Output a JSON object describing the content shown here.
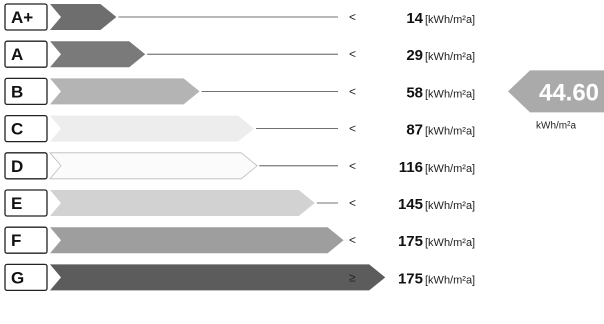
{
  "chart_data": {
    "type": "bar",
    "categories": [
      "A+",
      "A",
      "B",
      "C",
      "D",
      "E",
      "F",
      "G"
    ],
    "thresholds": [
      {
        "class": "A+",
        "symbol": "<",
        "value": "14",
        "unit": "[kWh/m²a]",
        "color": "#6e6e6e",
        "level": 0.12
      },
      {
        "class": "A",
        "symbol": "<",
        "value": "29",
        "unit": "[kWh/m²a]",
        "color": "#7a7a7a",
        "level": 0.21
      },
      {
        "class": "B",
        "symbol": "<",
        "value": "58",
        "unit": "[kWh/m²a]",
        "color": "#b4b4b4",
        "level": 0.38
      },
      {
        "class": "C",
        "symbol": "<",
        "value": "87",
        "unit": "[kWh/m²a]",
        "color": "#ededed",
        "level": 0.55
      },
      {
        "class": "D",
        "symbol": "<",
        "value": "116",
        "unit": "[kWh/m²a]",
        "color": "#fbfbfb",
        "level": 0.56
      },
      {
        "class": "E",
        "symbol": "<",
        "value": "145",
        "unit": "[kWh/m²a]",
        "color": "#d2d2d2",
        "level": 0.74
      },
      {
        "class": "F",
        "symbol": "<",
        "value": "175",
        "unit": "[kWh/m²a]",
        "color": "#9e9e9e",
        "level": 0.83
      },
      {
        "class": "G",
        "symbol": "≥",
        "value": "175",
        "unit": "[kWh/m²a]",
        "color": "#5c5c5c",
        "level": 0.96
      }
    ],
    "marker": {
      "value": "44.60",
      "unit": "kWh/m²a",
      "row": 2,
      "color": "#aaaaaa"
    }
  }
}
